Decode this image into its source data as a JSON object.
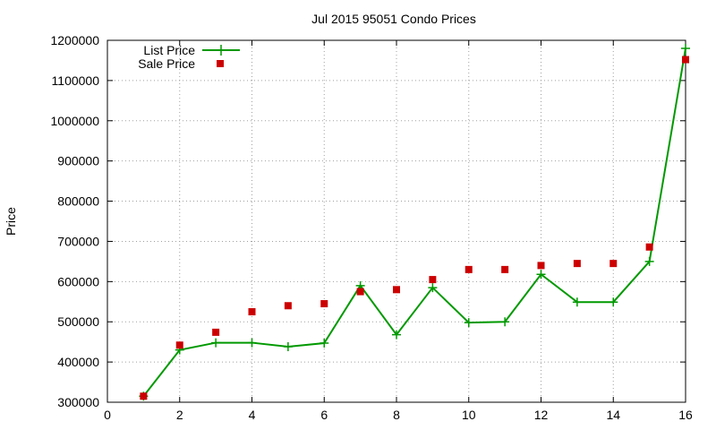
{
  "chart_data": {
    "type": "line",
    "title": "Jul 2015 95051 Condo Prices",
    "xlabel": "",
    "ylabel": "Price",
    "xlim": [
      0,
      16
    ],
    "ylim": [
      300000,
      1200000
    ],
    "xticks": [
      0,
      2,
      4,
      6,
      8,
      10,
      12,
      14,
      16
    ],
    "yticks": [
      300000,
      400000,
      500000,
      600000,
      700000,
      800000,
      900000,
      1000000,
      1100000,
      1200000
    ],
    "grid": true,
    "legend_position": "top-left",
    "series": [
      {
        "name": "List Price",
        "style": "line+cross",
        "color": "#009900",
        "x": [
          1,
          2,
          3,
          4,
          5,
          6,
          7,
          8,
          9,
          10,
          11,
          12,
          13,
          14,
          15,
          16
        ],
        "y": [
          315000,
          430000,
          448000,
          448000,
          438000,
          447000,
          590000,
          468000,
          585000,
          498000,
          500000,
          618000,
          549000,
          549000,
          650000,
          1180000
        ]
      },
      {
        "name": "Sale Price",
        "style": "square",
        "color": "#cc0000",
        "x": [
          1,
          2,
          3,
          4,
          5,
          6,
          7,
          8,
          9,
          10,
          11,
          12,
          13,
          14,
          15,
          16
        ],
        "y": [
          315000,
          442000,
          474000,
          525000,
          540000,
          545000,
          575000,
          580000,
          605000,
          630000,
          630000,
          640000,
          645000,
          645000,
          686000,
          1152000
        ]
      }
    ]
  }
}
